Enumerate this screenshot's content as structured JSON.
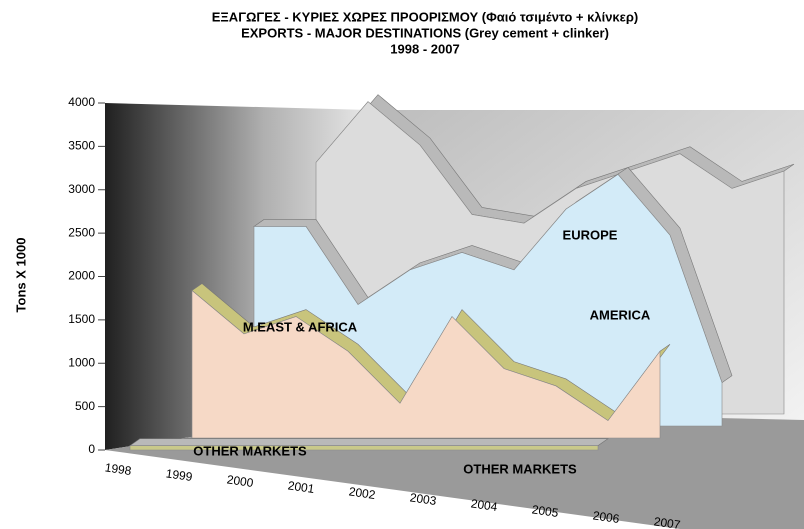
{
  "chart_data": {
    "type": "area3d",
    "title": "ΕΞΑΓΩΓΕΣ - ΚΥΡΙΕΣ ΧΩΡΕΣ ΠΡΟΟΡΙΣΜΟΥ (Φαιό τσιμέντο + κλίνκερ)",
    "subtitle": "EXPORTS - MAJOR DESTINATIONS (Grey cement + clinker)",
    "period": "1998 - 2007",
    "y_label": "Tons X 1000",
    "categories": [
      "1998",
      "1999",
      "2000",
      "2001",
      "2002",
      "2003",
      "2004",
      "2005",
      "2006",
      "2007"
    ],
    "series": [
      {
        "name": "OTHER MARKETS",
        "color": "#c9c98a",
        "values": [
          50,
          50,
          50,
          50,
          50,
          50,
          50,
          50,
          50,
          50
        ]
      },
      {
        "name": "M.EAST & AFRICA",
        "color": "#f6d9c6",
        "values": [
          1700,
          1200,
          1400,
          1000,
          400,
          1400,
          800,
          600,
          200,
          1000
        ]
      },
      {
        "name": "AMERICA",
        "color": "#d3ebf8",
        "values": [
          2300,
          2300,
          1400,
          1800,
          2000,
          1800,
          2500,
          2900,
          2200,
          500
        ]
      },
      {
        "name": "EUROPE",
        "color": "#dcdcdc",
        "values": [
          2900,
          3600,
          3100,
          2300,
          2200,
          2600,
          2800,
          3000,
          2600,
          2800
        ]
      }
    ],
    "ylim": [
      0,
      4000
    ],
    "yticks": [
      0,
      500,
      1000,
      1500,
      2000,
      2500,
      3000,
      3500,
      4000
    ]
  }
}
